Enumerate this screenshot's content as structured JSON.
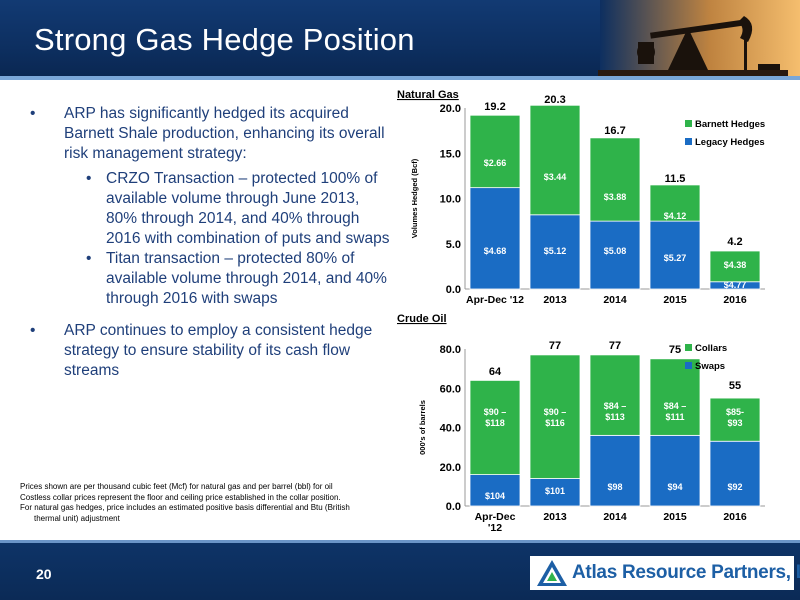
{
  "slide": {
    "title": "Strong Gas Hedge Position",
    "page_number": "20",
    "company": "Atlas Resource Partners, L.P."
  },
  "bullets": [
    {
      "level": 1,
      "text": "ARP has significantly hedged its acquired Barnett Shale production, enhancing its overall risk management strategy:"
    },
    {
      "level": 2,
      "text": "CRZO Transaction – protected 100% of available volume through June 2013, 80% through 2014, and 40% through 2016 with combination of puts and swaps"
    },
    {
      "level": 2,
      "text": "Titan transaction – protected 80% of available volume through 2014, and 40% through 2016 with swaps"
    },
    {
      "level": 1,
      "text": "ARP continues to employ a consistent hedge strategy to ensure stability of its cash flow streams"
    }
  ],
  "footnotes": [
    "Prices shown are per thousand cubic feet (Mcf) for natural gas and per barrel (bbl) for oil",
    "Costless collar prices represent the floor and ceiling price established in the collar position.",
    "For natural gas hedges, price includes an estimated positive basis differential and Btu (British",
    "thermal unit) adjustment"
  ],
  "colors": {
    "green": "#2fb34a",
    "blue": "#1a6cc4",
    "navy": "#0d2f60",
    "bullet_text": "#1f3f7a"
  },
  "chart_data": [
    {
      "type": "bar",
      "stacked": true,
      "title": "Natural Gas",
      "ylabel": "Volumes Hedged (Bcf)",
      "ylim": [
        0,
        20
      ],
      "yticks": [
        "0.0",
        "5.0",
        "10.0",
        "15.0",
        "20.0"
      ],
      "categories": [
        "Apr-Dec '12",
        "2013",
        "2014",
        "2015",
        "2016"
      ],
      "totals": [
        "19.2",
        "20.3",
        "16.7",
        "11.5",
        "4.2"
      ],
      "legend_position": "top-right",
      "series": [
        {
          "name": "Legacy Hedges",
          "color": "#1a6cc4",
          "values": [
            11.2,
            8.2,
            7.5,
            7.5,
            0.8
          ],
          "labels": [
            "$4.68",
            "$5.12",
            "$5.08",
            "$5.27",
            "$4.77"
          ]
        },
        {
          "name": "Barnett Hedges",
          "color": "#2fb34a",
          "values": [
            8.0,
            12.1,
            9.2,
            4.0,
            3.4
          ],
          "labels": [
            "$2.66",
            "$3.44",
            "$3.88",
            "$4.12",
            "$4.38"
          ]
        }
      ]
    },
    {
      "type": "bar",
      "stacked": true,
      "title": "Crude Oil",
      "ylabel": "000's of barrels",
      "ylim": [
        0,
        80
      ],
      "yticks": [
        "0.0",
        "20.0",
        "40.0",
        "60.0",
        "80.0"
      ],
      "categories": [
        "Apr-Dec '12",
        "2013",
        "2014",
        "2015",
        "2016"
      ],
      "totals": [
        "64",
        "77",
        "77",
        "75",
        "55"
      ],
      "legend_position": "top-right",
      "series": [
        {
          "name": "Swaps",
          "color": "#1a6cc4",
          "values": [
            16,
            14,
            36,
            36,
            33
          ],
          "labels": [
            "$104",
            "$101",
            "$98",
            "$94",
            "$92"
          ]
        },
        {
          "name": "Collars",
          "color": "#2fb34a",
          "values": [
            48,
            63,
            41,
            39,
            22
          ],
          "labels": [
            "$90 – $118",
            "$90 – $116",
            "$84 – $113",
            "$84 – $111",
            "$85- $93"
          ]
        }
      ]
    }
  ]
}
